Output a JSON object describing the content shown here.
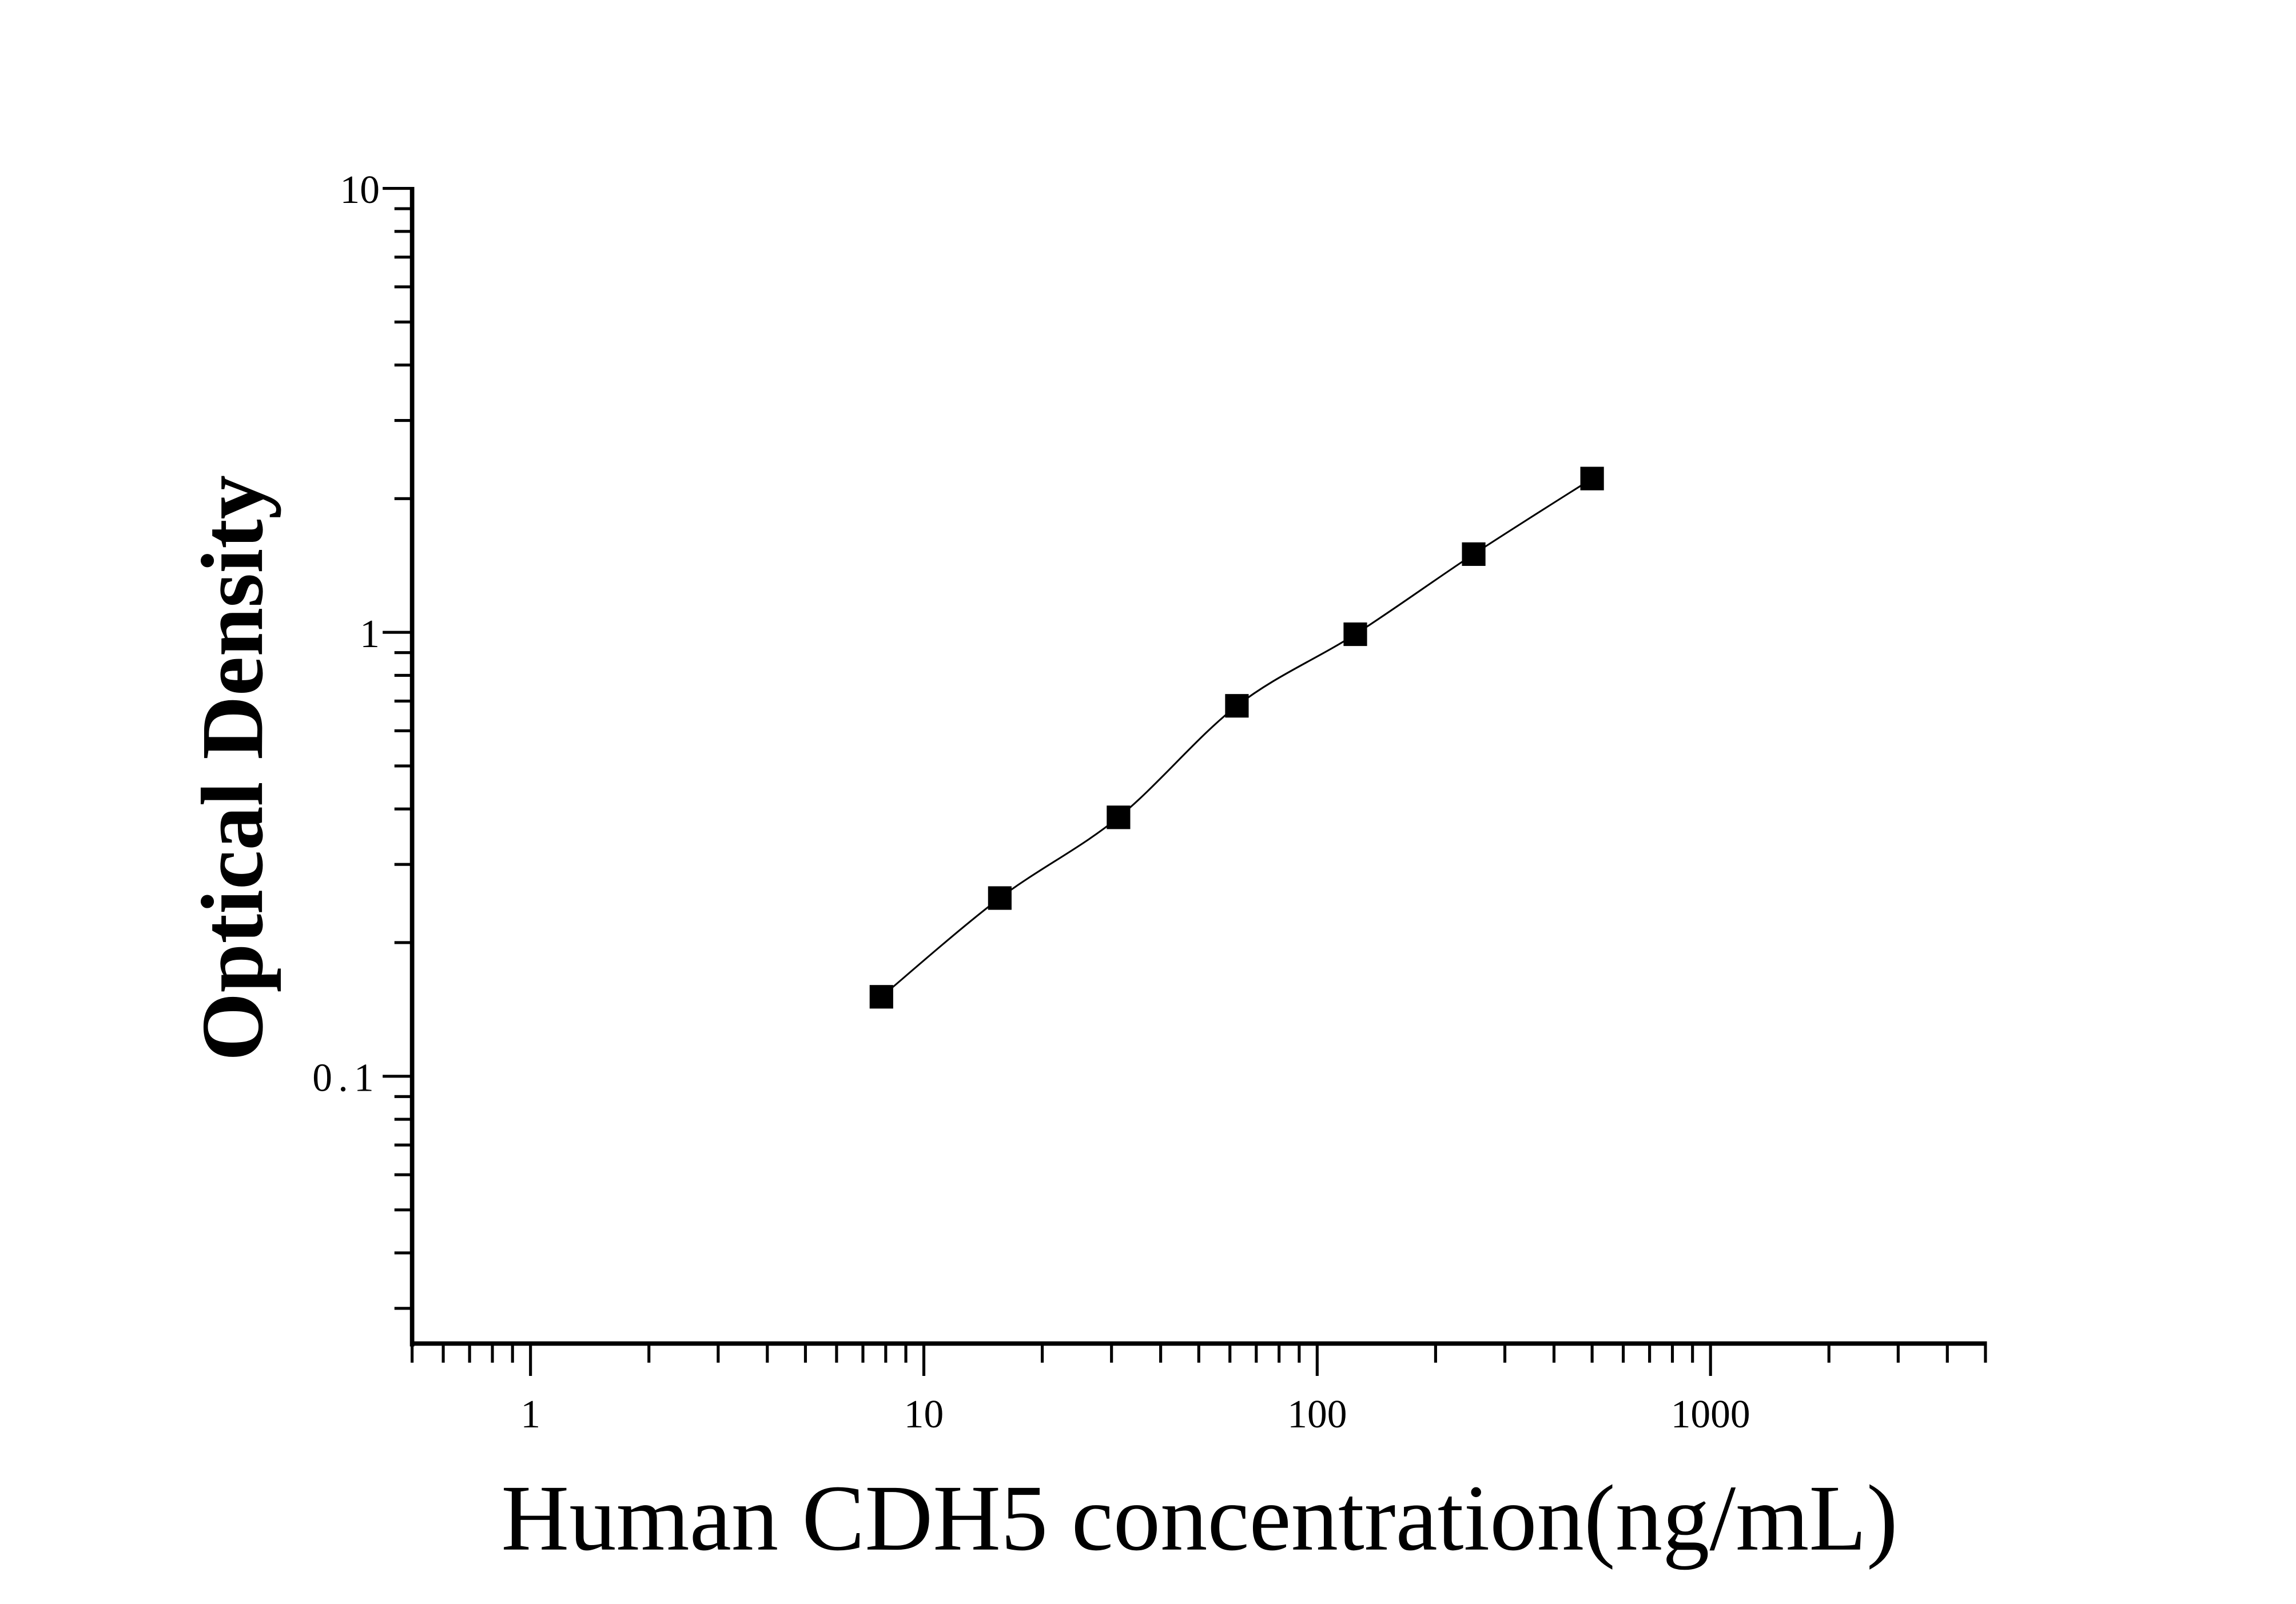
{
  "chart_data": {
    "type": "scatter",
    "xlabel": "Human CDH5 concentration(ng/mL)",
    "ylabel": "Optical Density",
    "x_scale": "log",
    "y_scale": "log",
    "xlim": [
      0.5,
      5000
    ],
    "ylim": [
      0.025,
      10
    ],
    "x_ticks": [
      1,
      10,
      100,
      1000
    ],
    "x_tick_labels": [
      "1",
      "10",
      "100",
      "1000"
    ],
    "y_ticks": [
      0.1,
      1,
      10
    ],
    "y_tick_labels": [
      "0.1",
      "1",
      "10"
    ],
    "grid": false,
    "marker": "square",
    "fit_line": true,
    "color": "#000000",
    "series": [
      {
        "x": [
          7.8,
          15.6,
          31.25,
          62.5,
          125,
          250,
          500
        ],
        "y": [
          0.151,
          0.252,
          0.383,
          0.683,
          0.99,
          1.5,
          2.22
        ]
      }
    ]
  }
}
